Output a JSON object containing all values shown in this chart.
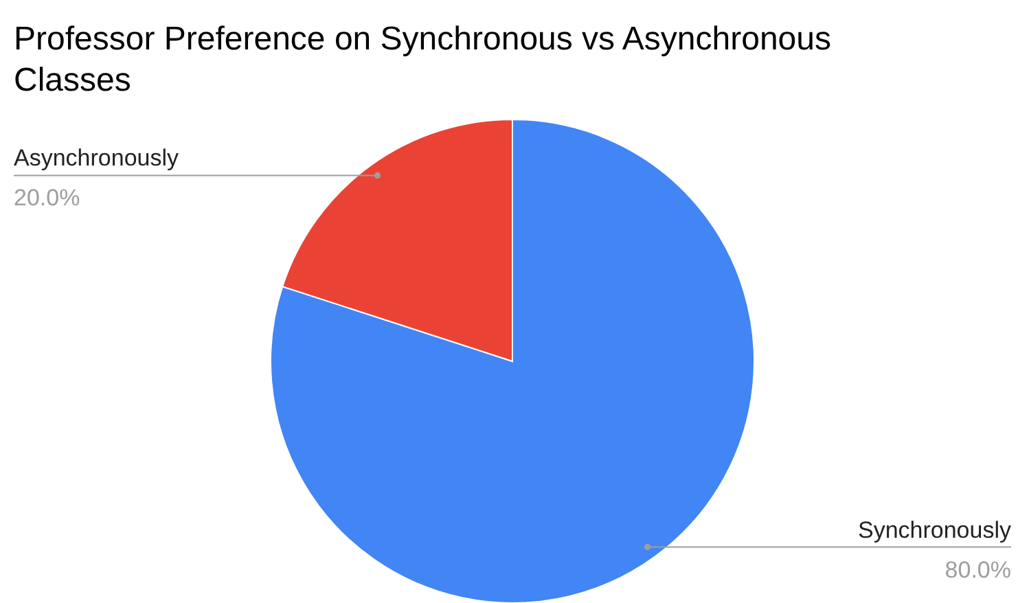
{
  "chart_data": {
    "type": "pie",
    "title": "Professor Preference on Synchronous vs Asynchronous Classes",
    "categories": [
      "Synchronously",
      "Asynchronously"
    ],
    "values": [
      80,
      20
    ],
    "colors": [
      "#4285f4",
      "#ea4335"
    ],
    "value_labels": [
      "80.0%",
      "20.0%"
    ],
    "legend": false
  }
}
